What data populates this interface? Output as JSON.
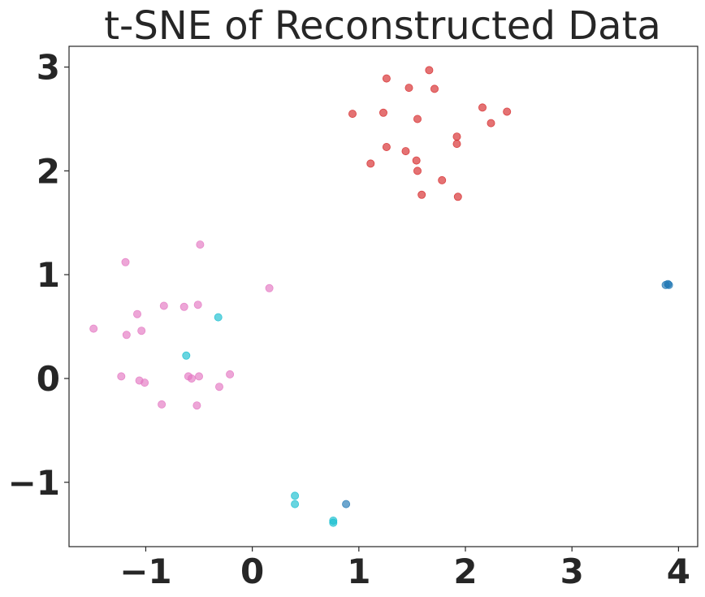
{
  "chart_data": {
    "type": "scatter",
    "title": "t-SNE of Reconstructed Data",
    "xlabel": "",
    "ylabel": "",
    "xlim": [
      -1.72,
      4.18
    ],
    "ylim": [
      -1.62,
      3.2
    ],
    "xticks": [
      -1,
      0,
      1,
      2,
      3,
      4
    ],
    "yticks": [
      -1,
      0,
      1,
      2,
      3
    ],
    "xtick_labels": [
      "−1",
      "0",
      "1",
      "2",
      "3",
      "4"
    ],
    "ytick_labels": [
      "−1",
      "0",
      "1",
      "2",
      "3"
    ],
    "grid": false,
    "legend": false,
    "series": [
      {
        "color": "#d62728",
        "points": [
          [
            1.66,
            2.97
          ],
          [
            1.26,
            2.89
          ],
          [
            1.47,
            2.8
          ],
          [
            1.71,
            2.79
          ],
          [
            2.16,
            2.61
          ],
          [
            2.39,
            2.57
          ],
          [
            0.94,
            2.55
          ],
          [
            1.23,
            2.56
          ],
          [
            1.55,
            2.5
          ],
          [
            2.24,
            2.46
          ],
          [
            1.92,
            2.33
          ],
          [
            1.92,
            2.26
          ],
          [
            1.26,
            2.23
          ],
          [
            1.44,
            2.19
          ],
          [
            1.54,
            2.1
          ],
          [
            1.11,
            2.07
          ],
          [
            1.55,
            2.0
          ],
          [
            1.78,
            1.91
          ],
          [
            1.59,
            1.77
          ],
          [
            1.93,
            1.75
          ]
        ]
      },
      {
        "color": "#e377c2",
        "points": [
          [
            -0.49,
            1.29
          ],
          [
            -1.19,
            1.12
          ],
          [
            0.16,
            0.87
          ],
          [
            -0.83,
            0.7
          ],
          [
            -0.64,
            0.69
          ],
          [
            -0.51,
            0.71
          ],
          [
            -1.08,
            0.62
          ],
          [
            -1.49,
            0.48
          ],
          [
            -1.04,
            0.46
          ],
          [
            -1.18,
            0.42
          ],
          [
            -1.23,
            0.02
          ],
          [
            -1.06,
            -0.02
          ],
          [
            -1.01,
            -0.04
          ],
          [
            -0.6,
            0.02
          ],
          [
            -0.57,
            0.0
          ],
          [
            -0.5,
            0.02
          ],
          [
            -0.21,
            0.04
          ],
          [
            -0.31,
            -0.08
          ],
          [
            -0.85,
            -0.25
          ],
          [
            -0.52,
            -0.26
          ]
        ]
      },
      {
        "color": "#17becf",
        "points": [
          [
            -0.32,
            0.59
          ],
          [
            -0.62,
            0.22
          ],
          [
            0.4,
            -1.13
          ],
          [
            0.4,
            -1.21
          ],
          [
            0.76,
            -1.37
          ],
          [
            0.76,
            -1.39
          ]
        ]
      },
      {
        "color": "#1f77b4",
        "points": [
          [
            3.88,
            0.9
          ],
          [
            3.9,
            0.91
          ],
          [
            3.91,
            0.9
          ],
          [
            0.88,
            -1.21
          ]
        ]
      }
    ]
  }
}
